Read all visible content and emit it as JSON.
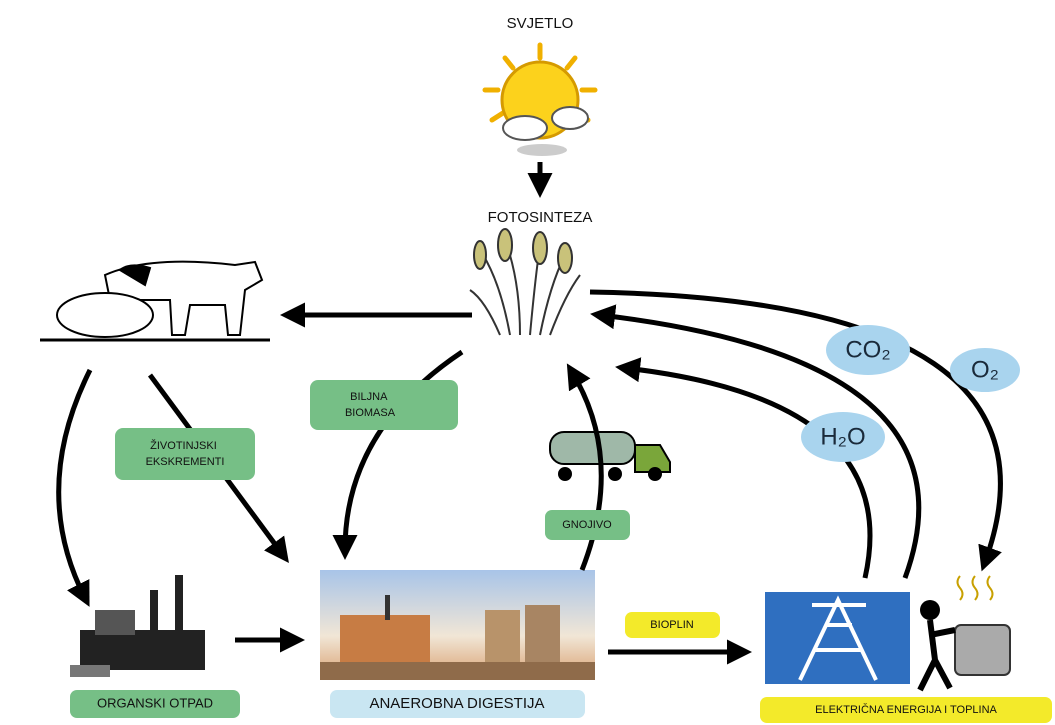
{
  "title": "SVJETLO",
  "nodes": [
    {
      "label": "FOTOSINTEZA"
    },
    {
      "label": "ORGANSKI OTPAD"
    },
    {
      "label": "ANAEROBNA DIGESTIJA"
    },
    {
      "label": "ELEKTRIČNA ENERGIJA I TOPLINA"
    }
  ],
  "flows": [
    {
      "lines": [
        "ŽIVOTINJSKI",
        "EKSKREMENTI"
      ]
    },
    {
      "lines": [
        "BILJNA",
        "BIOMASA"
      ]
    },
    {
      "lines": [
        "GNOJIVO"
      ]
    },
    {
      "lines": [
        "BIOPLIN"
      ]
    }
  ],
  "gases": [
    "CO₂",
    "O₂",
    "H₂O"
  ]
}
